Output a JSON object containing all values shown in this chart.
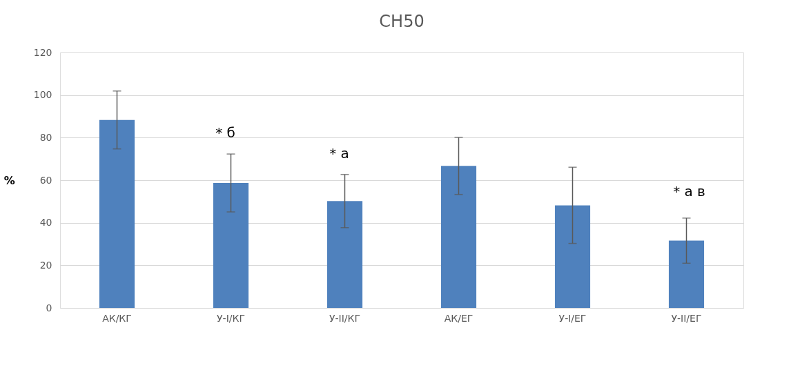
{
  "chart_data": {
    "type": "bar",
    "title": "CH50",
    "ylabel": "%",
    "categories": [
      "АК/КГ",
      "У-I/КГ",
      "У-II/КГ",
      "АК/ЕГ",
      "У-I/ЕГ",
      "У-II/ЕГ"
    ],
    "values": [
      88.3,
      58.7,
      50.2,
      66.7,
      48.2,
      31.6
    ],
    "errors": [
      13.6,
      13.6,
      12.5,
      13.4,
      17.9,
      10.6
    ],
    "color": "#4f81bd",
    "ylim": [
      0,
      120
    ],
    "yticks": [
      0,
      20,
      40,
      60,
      80,
      100,
      120
    ],
    "grid": "y",
    "annotations": [
      "* б",
      "* а",
      "* а в"
    ]
  }
}
